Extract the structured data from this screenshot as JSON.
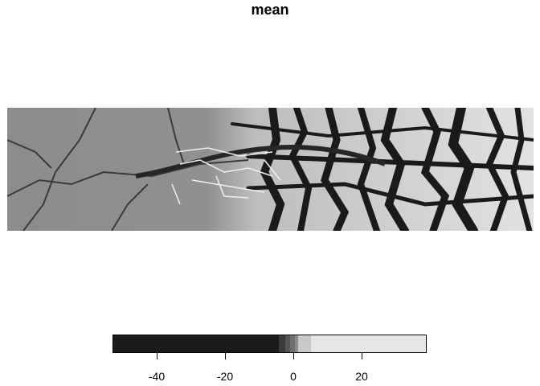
{
  "title": "mean",
  "legend": {
    "colors": [
      "#1a1a1a",
      "#3a3a3a",
      "#555555",
      "#6f6f6f",
      "#8a8a8a",
      "#c8c8c8",
      "#e6e6e6"
    ],
    "ticks": [
      {
        "value": -40,
        "label": "-40"
      },
      {
        "value": -20,
        "label": "-20"
      },
      {
        "value": 0,
        "label": "0"
      },
      {
        "value": 20,
        "label": "20"
      }
    ],
    "range": [
      -53,
      39
    ]
  },
  "raster": {
    "left_region_color": "#8a8a8a",
    "right_region_color": "#e0e0e0",
    "river_color": "#262626"
  }
}
